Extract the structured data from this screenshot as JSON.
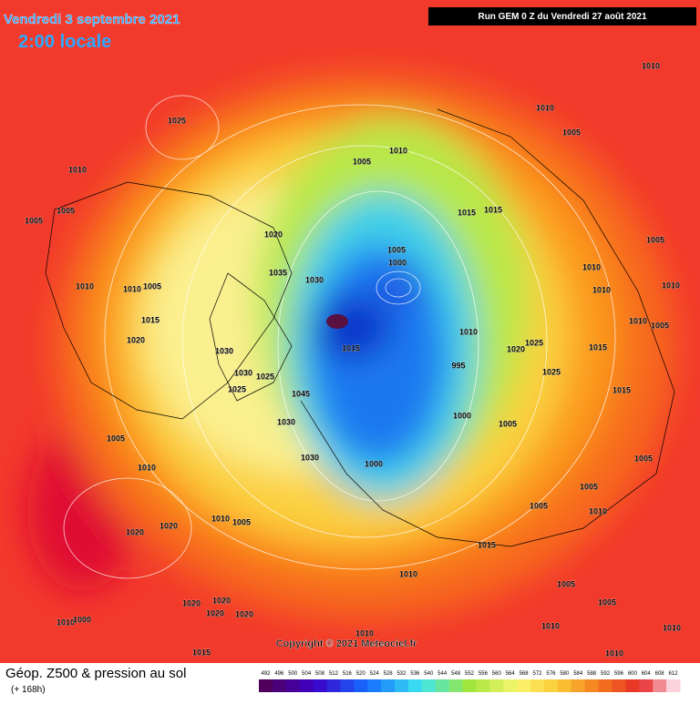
{
  "header": {
    "date": "Vendredi 3 septembre 2021",
    "time": "2:00 locale",
    "run": "Run GEM 0 Z du Vendredi 27 août 2021"
  },
  "copyright": "Copyright © 2021 Meteociel.fr",
  "footer": {
    "title": "Géop. Z500 & pression au sol",
    "subtitle": "(+ 168h)"
  },
  "legend": {
    "values": [
      492,
      496,
      500,
      504,
      508,
      512,
      516,
      520,
      524,
      528,
      532,
      536,
      540,
      544,
      548,
      552,
      556,
      560,
      564,
      568,
      572,
      576,
      580,
      584,
      588,
      592,
      596,
      600,
      604,
      608,
      612
    ]
  },
  "isobar_labels": [
    1010,
    1025,
    1010,
    1005,
    1010,
    1005,
    1010,
    1005,
    1005,
    1015,
    1015,
    1005,
    1020,
    1005,
    1000,
    1010,
    1010,
    1010,
    1035,
    1030,
    1010,
    1010,
    1005,
    1015,
    1020,
    1010,
    1005,
    1010,
    1015,
    1020,
    1025,
    1015,
    1030,
    995,
    1025,
    1030,
    1025,
    1025,
    1045,
    1015,
    1000,
    1030,
    1005,
    1005,
    1030,
    1000,
    1010,
    1005,
    1005,
    1005,
    1010,
    1020,
    1020,
    1010,
    1005,
    1015,
    1010,
    1005,
    1005,
    1020,
    1020,
    1020,
    1020,
    1010,
    1000,
    1015,
    1010,
    1010,
    1010,
    1010
  ]
}
